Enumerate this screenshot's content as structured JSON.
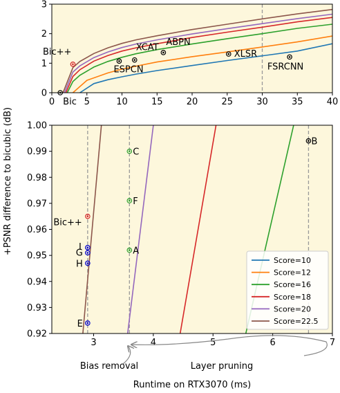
{
  "chart_data": [
    {
      "type": "line",
      "panel": "top",
      "xlim": [
        0,
        40
      ],
      "ylim": [
        0,
        3
      ],
      "xticks": [
        "0",
        "5",
        "10",
        "15",
        "20",
        "25",
        "30",
        "35",
        "40"
      ],
      "yticks": [
        "0",
        "1",
        "2",
        "3"
      ],
      "vline_x": 30,
      "series": [
        {
          "name": "Score=10",
          "color": "#1f77b4",
          "x": [
            4.0,
            6,
            8,
            10,
            12,
            15,
            20,
            25,
            30,
            35,
            40
          ],
          "y": [
            0.0,
            0.31,
            0.44,
            0.54,
            0.63,
            0.75,
            0.92,
            1.09,
            1.25,
            1.41,
            1.66
          ]
        },
        {
          "name": "Score=12",
          "color": "#ff7f0e",
          "x": [
            3.0,
            5,
            8,
            10,
            12,
            15,
            20,
            25,
            30,
            35,
            40
          ],
          "y": [
            0.0,
            0.42,
            0.67,
            0.8,
            0.9,
            1.04,
            1.22,
            1.38,
            1.55,
            1.72,
            1.92
          ]
        },
        {
          "name": "Score=16",
          "color": "#2ca02c",
          "x": [
            2.2,
            3,
            4,
            6,
            8,
            10,
            12,
            15,
            20,
            25,
            30,
            35,
            40
          ],
          "y": [
            0.0,
            0.38,
            0.59,
            0.87,
            1.06,
            1.2,
            1.32,
            1.46,
            1.65,
            1.83,
            2.0,
            2.18,
            2.32
          ]
        },
        {
          "name": "Score=18",
          "color": "#d62728",
          "x": [
            2.0,
            3,
            4,
            6,
            8,
            10,
            12,
            15,
            20,
            25,
            30,
            35,
            40
          ],
          "y": [
            0.0,
            0.55,
            0.78,
            1.07,
            1.26,
            1.41,
            1.52,
            1.66,
            1.87,
            2.05,
            2.22,
            2.4,
            2.55
          ]
        },
        {
          "name": "Score=20",
          "color": "#9467bd",
          "x": [
            1.8,
            3,
            4,
            6,
            8,
            10,
            12,
            15,
            20,
            25,
            30,
            35,
            40
          ],
          "y": [
            0.0,
            0.7,
            0.91,
            1.19,
            1.38,
            1.53,
            1.65,
            1.79,
            1.99,
            2.17,
            2.34,
            2.51,
            2.66
          ]
        },
        {
          "name": "Score=22.5",
          "color": "#8c564b",
          "x": [
            1.6,
            3,
            4,
            6,
            8,
            10,
            12,
            15,
            20,
            25,
            30,
            35,
            40
          ],
          "y": [
            0.0,
            0.85,
            1.06,
            1.33,
            1.52,
            1.67,
            1.79,
            1.93,
            2.14,
            2.32,
            2.5,
            2.67,
            2.82
          ]
        }
      ],
      "points": [
        {
          "label": "Bic",
          "x": 1.2,
          "y": 0.0,
          "color": "#000000"
        },
        {
          "label": "Bic++",
          "x": 3.0,
          "y": 0.965,
          "color": "#d62728"
        },
        {
          "label": "ESPCN",
          "x": 9.6,
          "y": 1.07,
          "color": "#000000"
        },
        {
          "label": "XCAT",
          "x": 11.8,
          "y": 1.11,
          "color": "#000000"
        },
        {
          "label": "ABPN",
          "x": 15.9,
          "y": 1.36,
          "color": "#000000"
        },
        {
          "label": "XLSR",
          "x": 25.2,
          "y": 1.31,
          "color": "#000000"
        },
        {
          "label": "FSRCNN",
          "x": 33.9,
          "y": 1.21,
          "color": "#000000"
        }
      ]
    },
    {
      "type": "line",
      "panel": "bottom",
      "xlim": [
        2.3,
        7.0
      ],
      "ylim": [
        0.92,
        1.0
      ],
      "xticks": [
        "3",
        "4",
        "5",
        "6",
        "7"
      ],
      "yticks": [
        "0.92",
        "0.93",
        "0.94",
        "0.95",
        "0.96",
        "0.97",
        "0.98",
        "0.99",
        "1.00"
      ],
      "vlines_x": [
        2.9,
        3.6,
        6.6
      ],
      "series": [
        {
          "name": "Score=10",
          "color": "#1f77b4",
          "x": [],
          "y": []
        },
        {
          "name": "Score=12",
          "color": "#ff7f0e",
          "x": [],
          "y": []
        },
        {
          "name": "Score=16",
          "color": "#2ca02c",
          "x": [
            5.55,
            6.35
          ],
          "y": [
            0.92,
            1.0
          ]
        },
        {
          "name": "Score=18",
          "color": "#d62728",
          "x": [
            4.45,
            5.05
          ],
          "y": [
            0.92,
            1.0
          ]
        },
        {
          "name": "Score=20",
          "color": "#9467bd",
          "x": [
            3.57,
            4.0
          ],
          "y": [
            0.92,
            1.0
          ]
        },
        {
          "name": "Score=22.5",
          "color": "#8c564b",
          "x": [
            2.82,
            3.13
          ],
          "y": [
            0.92,
            1.0
          ]
        }
      ],
      "points": [
        {
          "label": "B",
          "x": 6.6,
          "y": 0.994,
          "color": "#000000"
        },
        {
          "label": "C",
          "x": 3.6,
          "y": 0.99,
          "color": "#2ca02c"
        },
        {
          "label": "F",
          "x": 3.6,
          "y": 0.971,
          "color": "#2ca02c"
        },
        {
          "label": "A",
          "x": 3.6,
          "y": 0.952,
          "color": "#2ca02c"
        },
        {
          "label": "Bic++",
          "x": 2.9,
          "y": 0.965,
          "color": "#d62728"
        },
        {
          "label": "I",
          "x": 2.9,
          "y": 0.953,
          "color": "#0000cc"
        },
        {
          "label": "G",
          "x": 2.9,
          "y": 0.951,
          "color": "#0000cc"
        },
        {
          "label": "H",
          "x": 2.9,
          "y": 0.947,
          "color": "#0000cc"
        },
        {
          "label": "E",
          "x": 2.9,
          "y": 0.924,
          "color": "#0000cc"
        }
      ],
      "legend_position": "lower-right",
      "xlabel": "Runtime on RTX3070 (ms)"
    }
  ],
  "shared_ylabel": "+PSNR difference to bicubic (dB)",
  "annotations": {
    "bias": "Bias removal",
    "pruning": "Layer pruning"
  }
}
